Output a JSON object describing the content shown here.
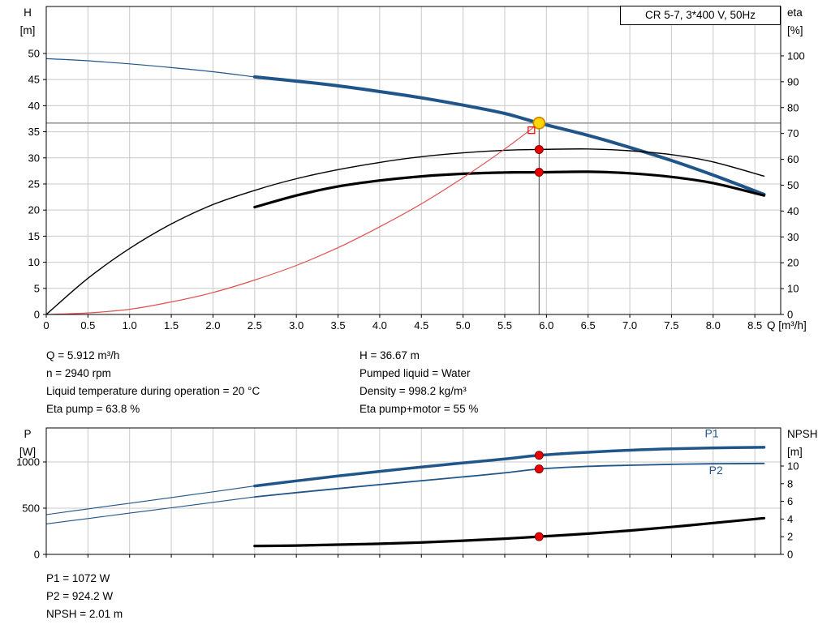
{
  "title_box": {
    "label": "CR 5-7, 3*400 V, 50Hz"
  },
  "info_panel": {
    "left": [
      "Q = 5.912 m³/h",
      "n = 2940 rpm",
      "Liquid temperature during operation = 20 °C",
      "Eta pump = 63.8 %"
    ],
    "right": [
      "H = 36.67 m",
      "Pumped liquid = Water",
      "Density = 998.2 kg/m³",
      "Eta pump+motor = 55 %"
    ]
  },
  "result_panel": [
    "P1 = 1072 W",
    "P2 = 924.2 W",
    "NPSH = 2.01 m"
  ],
  "colors": {
    "curve_blue": "#20558a",
    "curve_black": "#000000",
    "curve_red": "#e05050",
    "grid": "#c9c9c9",
    "guide_h": "#999999",
    "guide_v": "#444444",
    "marker_red": "#e80000",
    "marker_red_stroke": "#8c0000",
    "duty_fill": "#ffd800",
    "duty_stroke": "#d18a00"
  },
  "chart_data": [
    {
      "type": "line",
      "title": "CR 5-7, 3*400 V, 50Hz",
      "x_axis": {
        "label": "Q [m³/h]",
        "min": 0,
        "max": 8.81,
        "ticks": [
          0,
          0.5,
          1,
          1.5,
          2,
          2.5,
          3,
          3.5,
          4,
          4.5,
          5,
          5.5,
          6,
          6.5,
          7,
          7.5,
          8,
          8.5
        ],
        "tick_labels": [
          "0",
          "0.5",
          "1.0",
          "1.5",
          "2.0",
          "2.5",
          "3.0",
          "3.5",
          "4.0",
          "4.5",
          "5.0",
          "5.5",
          "6.0",
          "6.5",
          "7.0",
          "7.5",
          "8.0",
          "8.5"
        ],
        "show_labels": true
      },
      "y_left": {
        "label_lines": [
          "H",
          "[m]"
        ],
        "min": 0,
        "max": 59,
        "ticks": [
          0,
          5,
          10,
          15,
          20,
          25,
          30,
          35,
          40,
          45,
          50
        ]
      },
      "y_right": {
        "label_lines": [
          "eta",
          "[%]"
        ],
        "min": 0,
        "max": 119.1,
        "ticks": [
          0,
          10,
          20,
          30,
          40,
          50,
          60,
          70,
          80,
          90,
          100
        ]
      },
      "series": [
        {
          "name": "qh-curve-thin",
          "axis": "left",
          "color": "#20558a",
          "width": 1.2,
          "points": [
            [
              0,
              49.0
            ],
            [
              0.5,
              48.6
            ],
            [
              1,
              48.0
            ],
            [
              1.5,
              47.3
            ],
            [
              2,
              46.5
            ],
            [
              2.5,
              45.5
            ]
          ]
        },
        {
          "name": "qh-curve",
          "axis": "left",
          "color": "#20558a",
          "width": 4,
          "points": [
            [
              2.5,
              45.5
            ],
            [
              3,
              44.7
            ],
            [
              3.5,
              43.8
            ],
            [
              4,
              42.7
            ],
            [
              4.5,
              41.5
            ],
            [
              5,
              40.1
            ],
            [
              5.5,
              38.5
            ],
            [
              5.912,
              36.67
            ],
            [
              6.5,
              34.3
            ],
            [
              7,
              32.0
            ],
            [
              7.5,
              29.5
            ],
            [
              8,
              26.7
            ],
            [
              8.61,
              23.0
            ]
          ]
        },
        {
          "name": "eta-pump-curve",
          "axis": "right",
          "color": "#000000",
          "width": 1.4,
          "points": [
            [
              0,
              0
            ],
            [
              0.5,
              14
            ],
            [
              1,
              25.5
            ],
            [
              1.5,
              35
            ],
            [
              2,
              42.5
            ],
            [
              2.5,
              48
            ],
            [
              3,
              52.5
            ],
            [
              3.5,
              56
            ],
            [
              4,
              58.8
            ],
            [
              4.5,
              61
            ],
            [
              5,
              62.5
            ],
            [
              5.5,
              63.5
            ],
            [
              5.912,
              63.8
            ],
            [
              6.5,
              64
            ],
            [
              7,
              63.3
            ],
            [
              7.5,
              61.8
            ],
            [
              8,
              59
            ],
            [
              8.61,
              53.5
            ]
          ]
        },
        {
          "name": "eta-pump-motor-curve",
          "axis": "right",
          "color": "#000000",
          "width": 3.2,
          "points": [
            [
              2.5,
              41.5
            ],
            [
              3,
              46
            ],
            [
              3.5,
              49.5
            ],
            [
              4,
              51.8
            ],
            [
              4.5,
              53.4
            ],
            [
              5,
              54.4
            ],
            [
              5.5,
              54.9
            ],
            [
              5.912,
              55
            ],
            [
              6.5,
              55.2
            ],
            [
              7,
              54.6
            ],
            [
              7.5,
              53.2
            ],
            [
              8,
              50.8
            ],
            [
              8.61,
              46
            ]
          ]
        },
        {
          "name": "system-curve",
          "axis": "left",
          "color": "#e05050",
          "width": 1.2,
          "points": [
            [
              0,
              0
            ],
            [
              0.5,
              0.3
            ],
            [
              1,
              1.0
            ],
            [
              1.5,
              2.4
            ],
            [
              2,
              4.2
            ],
            [
              2.5,
              6.6
            ],
            [
              3,
              9.4
            ],
            [
              3.5,
              12.8
            ],
            [
              4,
              16.8
            ],
            [
              4.5,
              21.2
            ],
            [
              5,
              26.2
            ],
            [
              5.5,
              31.7
            ],
            [
              5.912,
              36.67
            ]
          ]
        }
      ],
      "guides": {
        "hline_y": 36.67,
        "vline_x": 5.912,
        "vline_top": 36.67
      },
      "markers": [
        {
          "x": 5.912,
          "y": 36.67,
          "axis": "left",
          "style": "yellow-dot"
        },
        {
          "x": 5.82,
          "y": 35.3,
          "axis": "left",
          "style": "red-open-square"
        },
        {
          "x": 5.912,
          "y": 63.8,
          "axis": "right",
          "style": "red-dot"
        },
        {
          "x": 5.912,
          "y": 55,
          "axis": "right",
          "style": "red-dot"
        }
      ],
      "series_labels": []
    },
    {
      "type": "line",
      "title": "",
      "x_axis": {
        "label": "",
        "min": 0,
        "max": 8.81,
        "ticks": [
          0,
          0.5,
          1,
          1.5,
          2,
          2.5,
          3,
          3.5,
          4,
          4.5,
          5,
          5.5,
          6,
          6.5,
          7,
          7.5,
          8,
          8.5
        ],
        "tick_labels": [],
        "show_labels": false
      },
      "y_left": {
        "label_lines": [
          "P",
          "[W]"
        ],
        "min": 0,
        "max": 1368,
        "ticks": [
          0,
          500,
          1000
        ]
      },
      "y_right": {
        "label_lines": [
          "NPSH",
          "[m]"
        ],
        "min": 0,
        "max": 14.31,
        "ticks": [
          0,
          2,
          4,
          6,
          8,
          10
        ]
      },
      "series": [
        {
          "name": "p1-curve-thin",
          "axis": "left",
          "color": "#20558a",
          "width": 1.1,
          "points": [
            [
              0,
              430
            ],
            [
              0.5,
              492
            ],
            [
              1,
              553
            ],
            [
              1.5,
              615
            ],
            [
              2,
              677
            ],
            [
              2.5,
              740
            ]
          ]
        },
        {
          "name": "p1-curve",
          "axis": "left",
          "color": "#20558a",
          "width": 3.5,
          "points": [
            [
              2.5,
              740
            ],
            [
              3,
              795
            ],
            [
              3.5,
              848
            ],
            [
              4,
              898
            ],
            [
              4.5,
              945
            ],
            [
              5,
              990
            ],
            [
              5.5,
              1032
            ],
            [
              5.912,
              1072
            ],
            [
              6.5,
              1105
            ],
            [
              7,
              1127
            ],
            [
              7.5,
              1142
            ],
            [
              8,
              1152
            ],
            [
              8.61,
              1158
            ]
          ]
        },
        {
          "name": "p2-curve-thin",
          "axis": "left",
          "color": "#20558a",
          "width": 1.1,
          "points": [
            [
              0,
              330
            ],
            [
              0.5,
              388
            ],
            [
              1,
              446
            ],
            [
              1.5,
              504
            ],
            [
              2,
              563
            ],
            [
              2.5,
              622
            ]
          ]
        },
        {
          "name": "p2-curve",
          "axis": "left",
          "color": "#20558a",
          "width": 1.8,
          "points": [
            [
              2.5,
              622
            ],
            [
              3,
              668
            ],
            [
              3.5,
              712
            ],
            [
              4,
              755
            ],
            [
              4.5,
              797
            ],
            [
              5,
              838
            ],
            [
              5.5,
              882
            ],
            [
              5.912,
              924.2
            ],
            [
              6.5,
              952
            ],
            [
              7,
              965
            ],
            [
              7.5,
              974
            ],
            [
              8,
              980
            ],
            [
              8.61,
              984
            ]
          ]
        },
        {
          "name": "npsh-curve",
          "axis": "right",
          "color": "#000000",
          "width": 3.2,
          "points": [
            [
              2.5,
              0.95
            ],
            [
              3,
              1.0
            ],
            [
              3.5,
              1.1
            ],
            [
              4,
              1.2
            ],
            [
              4.5,
              1.35
            ],
            [
              5,
              1.55
            ],
            [
              5.5,
              1.78
            ],
            [
              5.912,
              2.01
            ],
            [
              6.5,
              2.35
            ],
            [
              7,
              2.7
            ],
            [
              7.5,
              3.1
            ],
            [
              8,
              3.55
            ],
            [
              8.61,
              4.1
            ]
          ]
        }
      ],
      "guides": {},
      "markers": [
        {
          "x": 5.912,
          "y": 1072,
          "axis": "left",
          "style": "red-dot"
        },
        {
          "x": 5.912,
          "y": 924.2,
          "axis": "left",
          "style": "red-dot"
        },
        {
          "x": 5.912,
          "y": 2.01,
          "axis": "right",
          "style": "red-dot"
        }
      ],
      "series_labels": [
        {
          "text": "P1",
          "x": 7.9,
          "y": 1265,
          "axis": "left",
          "color": "#20558a"
        },
        {
          "text": "P2",
          "x": 7.95,
          "y": 870,
          "axis": "left",
          "color": "#20558a"
        }
      ]
    }
  ]
}
